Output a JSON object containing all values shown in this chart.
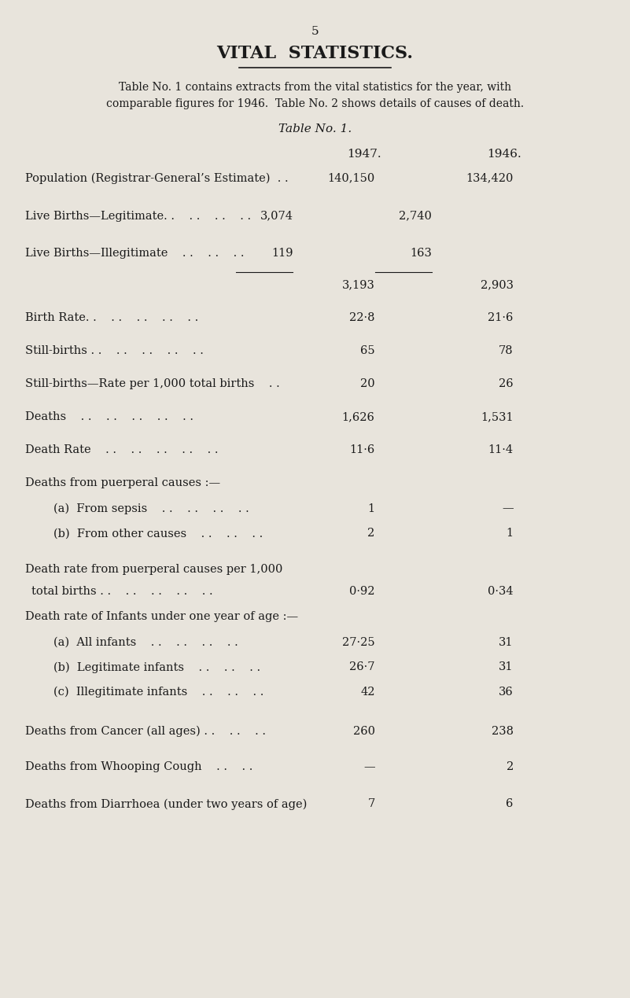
{
  "page_number": "5",
  "title": "VITAL  STATISTICS.",
  "subtitle": "Table No. 1 contains extracts from the vital statistics for the year, with\ncomparable figures for 1946.  Table No. 2 shows details of causes of death.",
  "table_title": "Table No. 1.",
  "col_headers": [
    "1947.",
    "1946."
  ],
  "background_color": "#e8e4dc",
  "text_color": "#1a1a1a",
  "rows": [
    {
      "label": "Population (Registrar-General’s Estimate)  . .",
      "indent": 0,
      "val1": "140,150",
      "val2": "134,420",
      "col1_inner": "",
      "col2_inner": "",
      "line_above": false,
      "type": "normal"
    },
    {
      "label": "Live Births—Legitimate. .    . .    . .    . .",
      "indent": 0,
      "val1": "",
      "val2": "",
      "col1_inner": "3,074",
      "col2_inner": "2,740",
      "line_above": false,
      "type": "normal"
    },
    {
      "label": "Live Births—Illegitimate    . .    . .    . .",
      "indent": 0,
      "val1": "",
      "val2": "",
      "col1_inner": "119",
      "col2_inner": "163",
      "line_above": false,
      "type": "normal"
    },
    {
      "label": "",
      "indent": 0,
      "val1": "3,193",
      "val2": "2,903",
      "col1_inner": "",
      "col2_inner": "",
      "line_above": true,
      "type": "total"
    },
    {
      "label": "Birth Rate. .    . .    . .    . .    . .",
      "indent": 0,
      "val1": "22·8",
      "val2": "21·6",
      "col1_inner": "",
      "col2_inner": "",
      "line_above": false,
      "type": "normal"
    },
    {
      "label": "Still-births . .    . .    . .    . .    . .",
      "indent": 0,
      "val1": "65",
      "val2": "78",
      "col1_inner": "",
      "col2_inner": "",
      "line_above": false,
      "type": "normal"
    },
    {
      "label": "Still-births—Rate per 1,000 total births    . .",
      "indent": 0,
      "val1": "20",
      "val2": "26",
      "col1_inner": "",
      "col2_inner": "",
      "line_above": false,
      "type": "normal"
    },
    {
      "label": "Deaths    . .    . .    . .    . .    . .",
      "indent": 0,
      "val1": "1,626",
      "val2": "1,531",
      "col1_inner": "",
      "col2_inner": "",
      "line_above": false,
      "type": "normal"
    },
    {
      "label": "Death Rate    . .    . .    . .    . .    . .",
      "indent": 0,
      "val1": "11·6",
      "val2": "11·4",
      "col1_inner": "",
      "col2_inner": "",
      "line_above": false,
      "type": "normal"
    },
    {
      "label": "Deaths from puerperal causes :—",
      "indent": 0,
      "val1": "",
      "val2": "",
      "col1_inner": "",
      "col2_inner": "",
      "line_above": false,
      "type": "header"
    },
    {
      "label": "(a)  From sepsis    . .    . .    . .    . .",
      "indent": 1,
      "val1": "1",
      "val2": "—",
      "col1_inner": "",
      "col2_inner": "",
      "line_above": false,
      "type": "normal"
    },
    {
      "label": "(b)  From other causes    . .    . .    . .",
      "indent": 1,
      "val1": "2",
      "val2": "1",
      "col1_inner": "",
      "col2_inner": "",
      "line_above": false,
      "type": "normal"
    },
    {
      "label": "Death rate from puerperal causes per 1,000\n    total births . .    . .    . .    . .    . .",
      "indent": 0,
      "val1": "0·92",
      "val2": "0·34",
      "col1_inner": "",
      "col2_inner": "",
      "line_above": false,
      "type": "multiline"
    },
    {
      "label": "Death rate of Infants under one year of age :—",
      "indent": 0,
      "val1": "",
      "val2": "",
      "col1_inner": "",
      "col2_inner": "",
      "line_above": false,
      "type": "header"
    },
    {
      "label": "(a)  All infants    . .    . .    . .    . .",
      "indent": 1,
      "val1": "27·25",
      "val2": "31",
      "col1_inner": "",
      "col2_inner": "",
      "line_above": false,
      "type": "normal"
    },
    {
      "label": "(b)  Legitimate infants    . .    . .    . .",
      "indent": 1,
      "val1": "26·7",
      "val2": "31",
      "col1_inner": "",
      "col2_inner": "",
      "line_above": false,
      "type": "normal"
    },
    {
      "label": "(c)  Illegitimate infants    . .    . .    . .",
      "indent": 1,
      "val1": "42",
      "val2": "36",
      "col1_inner": "",
      "col2_inner": "",
      "line_above": false,
      "type": "normal"
    },
    {
      "label": "Deaths from Cancer (all ages) . .    . .    . .",
      "indent": 0,
      "val1": "260",
      "val2": "238",
      "col1_inner": "",
      "col2_inner": "",
      "line_above": false,
      "type": "normal"
    },
    {
      "label": "Deaths from Whooping Cough    . .    . .",
      "indent": 0,
      "val1": "—",
      "val2": "2",
      "col1_inner": "",
      "col2_inner": "",
      "line_above": false,
      "type": "normal"
    },
    {
      "label": "Deaths from Diarrhoea (under two years of age)",
      "indent": 0,
      "val1": "7",
      "val2": "6",
      "col1_inner": "",
      "col2_inner": "",
      "line_above": false,
      "type": "normal"
    }
  ]
}
